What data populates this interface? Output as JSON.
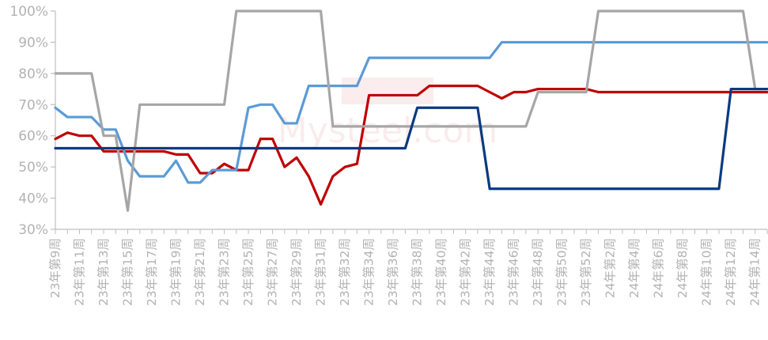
{
  "chart_data": {
    "type": "line",
    "title": "",
    "xlabel": "",
    "ylabel": "",
    "ylim": [
      30,
      100
    ],
    "yticks": [
      "30%",
      "40%",
      "50%",
      "60%",
      "70%",
      "80%",
      "90%",
      "100%"
    ],
    "grid": false,
    "legend": "none",
    "x_labels_shown": [
      "23年第9周",
      "23年第11周",
      "23年第13周",
      "23年第15周",
      "23年第17周",
      "23年第19周",
      "23年第21周",
      "23年第23周",
      "23年第25周",
      "23年第27周",
      "23年第29周",
      "23年第31周",
      "23年第32周",
      "23年第34周",
      "23年第36周",
      "23年第38周",
      "23年第40周",
      "23年第42周",
      "23年第44周",
      "23年第46周",
      "23年第48周",
      "23年第50周",
      "23年第52周",
      "24年第2周",
      "24年第4周",
      "24年第6周",
      "24年第8周",
      "24年第10周",
      "24年第12周",
      "24年第14周"
    ],
    "series": [
      {
        "color": "#c00000",
        "values": [
          59,
          61,
          60,
          60,
          55,
          55,
          55,
          55,
          55,
          55,
          54,
          54,
          48,
          48,
          51,
          49,
          49,
          59,
          59,
          50,
          53,
          47,
          38,
          47,
          50,
          51,
          73,
          73,
          73,
          73,
          73,
          76,
          76,
          76,
          76,
          76,
          74,
          72,
          74,
          74,
          75,
          75,
          75,
          75,
          75,
          74,
          74,
          74,
          74,
          74,
          74,
          74,
          74,
          74,
          74,
          74,
          74,
          74,
          74,
          74
        ]
      },
      {
        "color": "#5b9bd5",
        "values": [
          69,
          66,
          66,
          66,
          62,
          62,
          52,
          47,
          47,
          47,
          52,
          45,
          45,
          49,
          49,
          49,
          69,
          70,
          70,
          64,
          64,
          76,
          76,
          76,
          76,
          76,
          85,
          85,
          85,
          85,
          85,
          85,
          85,
          85,
          85,
          85,
          85,
          90,
          90,
          90,
          90,
          90,
          90,
          90,
          90,
          90,
          90,
          90,
          90,
          90,
          90,
          90,
          90,
          90,
          90,
          90,
          90,
          90,
          90,
          90
        ]
      },
      {
        "color": "#a6a6a6",
        "values": [
          80,
          80,
          80,
          80,
          60,
          60,
          36,
          70,
          70,
          70,
          70,
          70,
          70,
          70,
          70,
          100,
          100,
          100,
          100,
          100,
          100,
          100,
          100,
          63,
          63,
          63,
          63,
          63,
          63,
          63,
          63,
          63,
          63,
          63,
          63,
          63,
          63,
          63,
          63,
          63,
          74,
          74,
          74,
          74,
          74,
          100,
          100,
          100,
          100,
          100,
          100,
          100,
          100,
          100,
          100,
          100,
          100,
          100,
          75,
          75
        ]
      },
      {
        "color": "#0a3a80",
        "values": [
          56,
          56,
          56,
          56,
          56,
          56,
          56,
          56,
          56,
          56,
          56,
          56,
          56,
          56,
          56,
          56,
          56,
          56,
          56,
          56,
          56,
          56,
          56,
          56,
          56,
          56,
          56,
          56,
          56,
          56,
          69,
          69,
          69,
          69,
          69,
          69,
          43,
          43,
          43,
          43,
          43,
          43,
          43,
          43,
          43,
          43,
          43,
          43,
          43,
          43,
          43,
          43,
          43,
          43,
          43,
          43,
          75,
          75,
          75,
          75
        ]
      }
    ]
  },
  "watermark": {
    "text": "Mysteel.com"
  }
}
